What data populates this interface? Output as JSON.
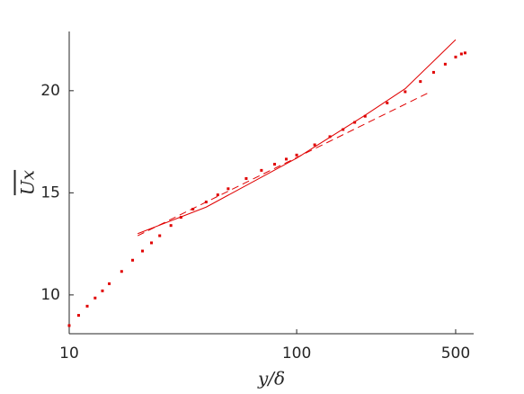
{
  "chart_data": {
    "type": "scatter",
    "xlabel": "y/δ",
    "ylabel": "Ux",
    "xscale": "log",
    "xlim": [
      10,
      600
    ],
    "xticks": [
      10,
      100,
      500
    ],
    "ylim": [
      8.1,
      22.9
    ],
    "yticks": [
      10,
      15,
      20
    ],
    "series": [
      {
        "type": "scatter",
        "color": "#e00000",
        "x": [
          10,
          11,
          12,
          13,
          14,
          15,
          17,
          19,
          21,
          23,
          25,
          28,
          31,
          35,
          40,
          45,
          50,
          60,
          70,
          80,
          90,
          100,
          120,
          140,
          160,
          180,
          200,
          250,
          300,
          350,
          400,
          450,
          500,
          530,
          550
        ],
        "values": [
          8.5,
          9.0,
          9.45,
          9.85,
          10.2,
          10.55,
          11.15,
          11.7,
          12.15,
          12.55,
          12.9,
          13.4,
          13.8,
          14.2,
          14.55,
          14.9,
          15.2,
          15.7,
          16.1,
          16.4,
          16.65,
          16.85,
          17.35,
          17.75,
          18.1,
          18.45,
          18.75,
          19.4,
          19.95,
          20.45,
          20.9,
          21.3,
          21.65,
          21.8,
          21.85
        ]
      },
      {
        "type": "line",
        "color": "#e00000",
        "linestyle": "solid",
        "x": [
          20,
          40,
          100,
          200,
          300,
          500
        ],
        "values": [
          13.0,
          14.3,
          16.7,
          18.8,
          20.1,
          22.5
        ]
      },
      {
        "type": "line",
        "color": "#e00000",
        "linestyle": "dashed",
        "x": [
          20,
          375
        ],
        "values": [
          12.9,
          19.87
        ]
      }
    ]
  }
}
